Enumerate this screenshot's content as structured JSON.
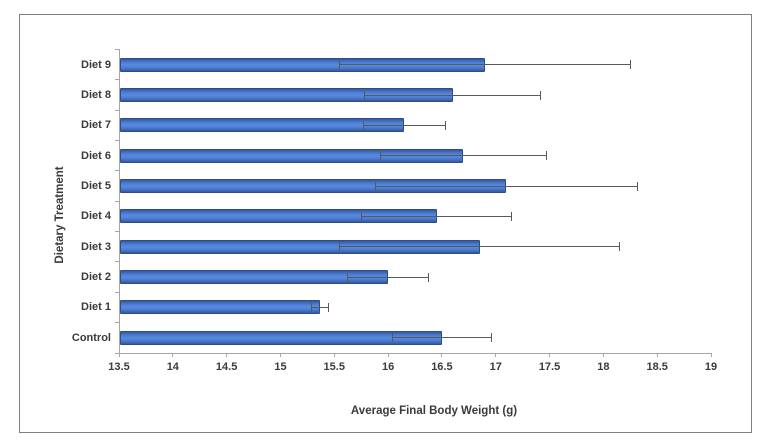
{
  "chart_data": {
    "type": "bar",
    "orientation": "horizontal",
    "title": "",
    "xlabel": "Average Final Body Weight (g)",
    "ylabel": "Dietary Treatment",
    "xlim": [
      13.5,
      19
    ],
    "tick_step": 0.5,
    "x_tick_labels": [
      "13.5",
      "14",
      "14.5",
      "15",
      "15.5",
      "16",
      "16.5",
      "17",
      "17.5",
      "18",
      "18.5",
      "19"
    ],
    "categories_top_to_bottom": [
      "Diet 9",
      "Diet 8",
      "Diet 7",
      "Diet 6",
      "Diet 5",
      "Diet 4",
      "Diet 3",
      "Diet 2",
      "Diet 1",
      "Control"
    ],
    "values": [
      16.9,
      16.6,
      16.15,
      16.7,
      17.1,
      16.45,
      16.85,
      16.0,
      15.37,
      16.5
    ],
    "error_bars": [
      1.35,
      0.82,
      0.38,
      0.77,
      1.22,
      0.7,
      1.3,
      0.38,
      0.08,
      0.46
    ],
    "grid": false,
    "legend": false,
    "colors": {
      "bar_fill": "#4a79cc",
      "bar_border": "#2e4d87",
      "error_bar": "#595959",
      "axis": "#a6a6a6",
      "text": "#3b3b3b",
      "frame_border": "#7f7f7f",
      "background": "#ffffff"
    }
  }
}
